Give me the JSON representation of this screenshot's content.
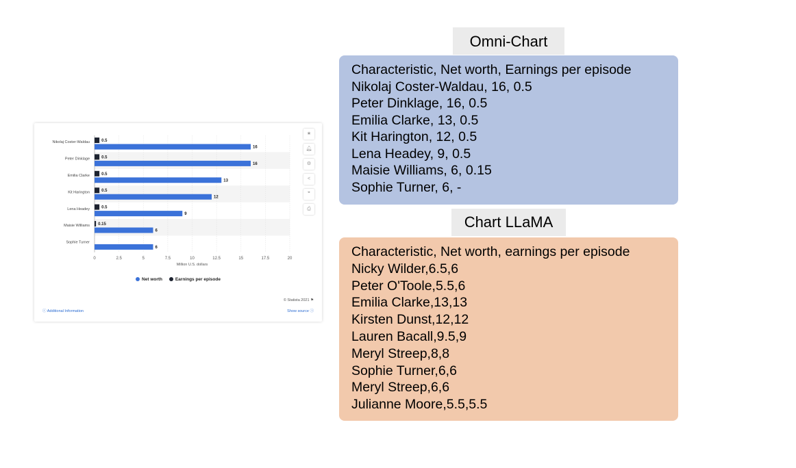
{
  "chart_data": {
    "type": "bar",
    "orientation": "horizontal",
    "categories": [
      "Nikolaj Coster-Waldau",
      "Peter Dinklage",
      "Emilia Clarke",
      "Kit Harington",
      "Lena Headey",
      "Maisie Williams",
      "Sophie Turner"
    ],
    "series": [
      {
        "name": "Net worth",
        "color": "#3b72d9",
        "values": [
          16,
          16,
          13,
          12,
          9,
          6,
          6
        ]
      },
      {
        "name": "Earnings per episode",
        "color": "#1d2330",
        "values": [
          0.5,
          0.5,
          0.5,
          0.5,
          0.5,
          0.15,
          null
        ]
      }
    ],
    "data_labels": {
      "Net worth": [
        "16",
        "16",
        "13",
        "12",
        "9",
        "6",
        "6"
      ],
      "Earnings per episode": [
        "0.5",
        "0.5",
        "0.5",
        "0.5",
        "0.5",
        "0.15",
        ""
      ]
    },
    "xlim": [
      0,
      20
    ],
    "xticks": [
      "0",
      "2.5",
      "5",
      "7.5",
      "10",
      "12.5",
      "15",
      "17.5",
      "20"
    ],
    "xlabel": "Million U.S. dollars",
    "grid": true,
    "legend": "bottom",
    "copyright": "© Statista 2021",
    "additional_info": "Additional Information",
    "show_source": "Show source"
  },
  "panels": {
    "omni": {
      "title": "Omni-Chart",
      "lines": [
        "Characteristic, Net worth, Earnings per episode",
        "Nikolaj Coster-Waldau, 16, 0.5",
        "Peter Dinklage, 16, 0.5",
        "Emilia Clarke, 13, 0.5",
        "Kit Harington, 12, 0.5",
        "Lena Headey, 9, 0.5",
        "Maisie Williams, 6, 0.15",
        "Sophie Turner, 6, -"
      ],
      "color": "#b4c3e1"
    },
    "llama": {
      "title": "Chart LLaMA",
      "lines": [
        "Characteristic, Net worth, earnings per episode",
        "Nicky Wilder,6.5,6",
        "Peter O'Toole,5.5,6",
        "Emilia Clarke,13,13",
        "Kirsten Dunst,12,12",
        "Lauren Bacall,9.5,9",
        "Meryl Streep,8,8",
        "Sophie Turner,6,6",
        "Meryl Streep,6,6",
        "Julianne Moore,5.5,5.5"
      ],
      "color": "#f2c9ac"
    }
  },
  "tool_icons": [
    "star-icon",
    "bell-icon",
    "gear-icon",
    "share-icon",
    "quote-icon",
    "print-icon"
  ]
}
